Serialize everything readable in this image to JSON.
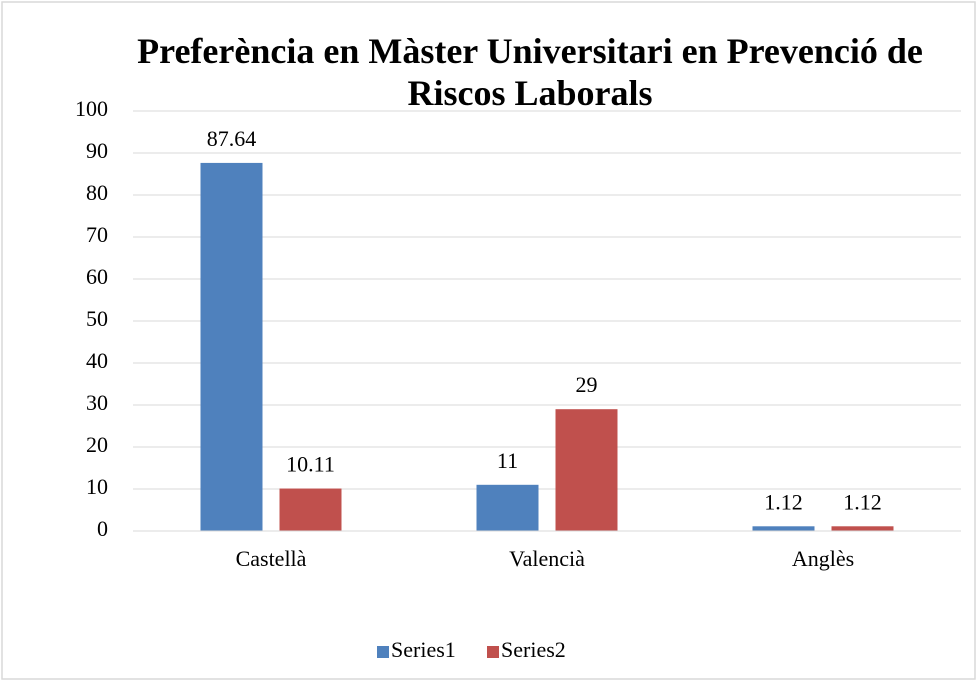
{
  "chart_data": {
    "type": "bar",
    "title": "Preferència en Màster Universitari en Prevenció de Riscos Laborals",
    "categories": [
      "Castellà",
      "Valencià",
      "Anglès"
    ],
    "series": [
      {
        "name": "Series1",
        "color": "#4f81bd",
        "values": [
          87.64,
          11,
          1.12
        ]
      },
      {
        "name": "Series2",
        "color": "#c0504d",
        "values": [
          10.11,
          29,
          1.12
        ]
      }
    ],
    "ylim": [
      0,
      100
    ],
    "yticks": [
      0,
      10,
      20,
      30,
      40,
      50,
      60,
      70,
      80,
      90,
      100
    ],
    "grid": true,
    "legend": "bottom"
  }
}
